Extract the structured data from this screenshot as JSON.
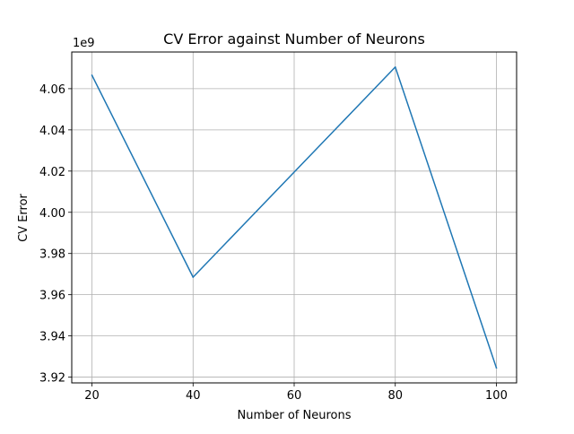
{
  "chart_data": {
    "type": "line",
    "title": "CV Error against Number of Neurons",
    "xlabel": "Number of Neurons",
    "ylabel": "CV Error",
    "y_offset_label": "1e9",
    "x": [
      20,
      40,
      80,
      100
    ],
    "series": [
      {
        "values": [
          4066500000.0,
          3968500000.0,
          4070500000.0,
          3924500000.0
        ],
        "color": "#1f77b4"
      }
    ],
    "xlim": [
      16,
      104
    ],
    "ylim": [
      3917200000.0,
      4077800000.0
    ],
    "x_ticks": [
      20,
      40,
      60,
      80,
      100
    ],
    "x_tick_labels": [
      "20",
      "40",
      "60",
      "80",
      "100"
    ],
    "y_ticks": [
      3920000000.0,
      3940000000.0,
      3960000000.0,
      3980000000.0,
      4000000000.0,
      4020000000.0,
      4040000000.0,
      4060000000.0
    ],
    "y_tick_labels": [
      "3.92",
      "3.94",
      "3.96",
      "3.98",
      "4.00",
      "4.02",
      "4.04",
      "4.06"
    ],
    "grid": true,
    "grid_color": "#b0b0b0"
  }
}
